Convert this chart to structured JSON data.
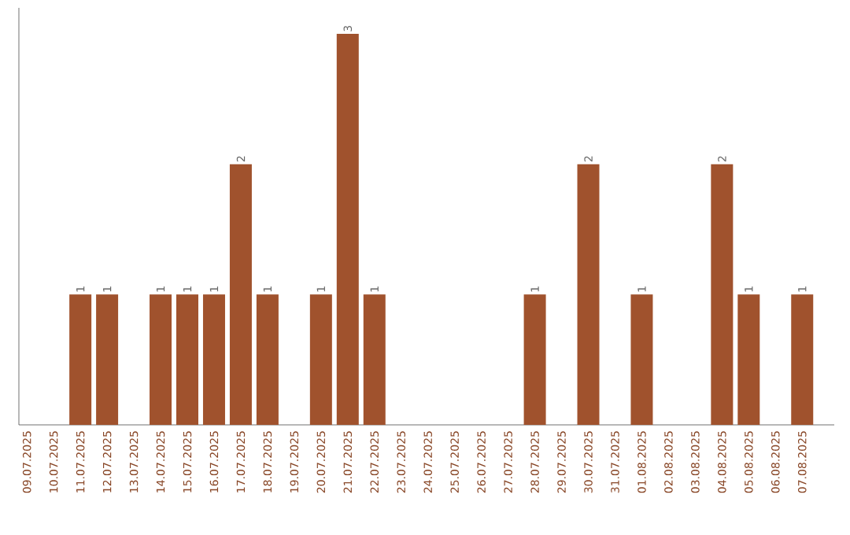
{
  "chart_data": {
    "type": "bar",
    "categories": [
      "09.07.2025",
      "10.07.2025",
      "11.07.2025",
      "12.07.2025",
      "13.07.2025",
      "14.07.2025",
      "15.07.2025",
      "16.07.2025",
      "17.07.2025",
      "18.07.2025",
      "19.07.2025",
      "20.07.2025",
      "21.07.2025",
      "22.07.2025",
      "23.07.2025",
      "24.07.2025",
      "25.07.2025",
      "26.07.2025",
      "27.07.2025",
      "28.07.2025",
      "29.07.2025",
      "30.07.2025",
      "31.07.2025",
      "01.08.2025",
      "02.08.2025",
      "03.08.2025",
      "04.08.2025",
      "05.08.2025",
      "06.08.2025",
      "07.08.2025"
    ],
    "values": [
      0,
      0,
      1,
      1,
      0,
      1,
      1,
      1,
      2,
      1,
      0,
      1,
      3,
      1,
      0,
      0,
      0,
      0,
      0,
      1,
      0,
      2,
      0,
      1,
      0,
      0,
      2,
      1,
      0,
      1
    ],
    "value_labels": [
      null,
      null,
      "1",
      "1",
      null,
      "1",
      "1",
      "1",
      "2",
      "1",
      null,
      "1",
      "3",
      "1",
      null,
      null,
      null,
      null,
      null,
      "1",
      null,
      "2",
      null,
      "1",
      null,
      null,
      "2",
      "1",
      null,
      "1"
    ],
    "color": "#a0522d",
    "ylim": [
      0,
      3.2
    ],
    "tick_labels": "x"
  }
}
